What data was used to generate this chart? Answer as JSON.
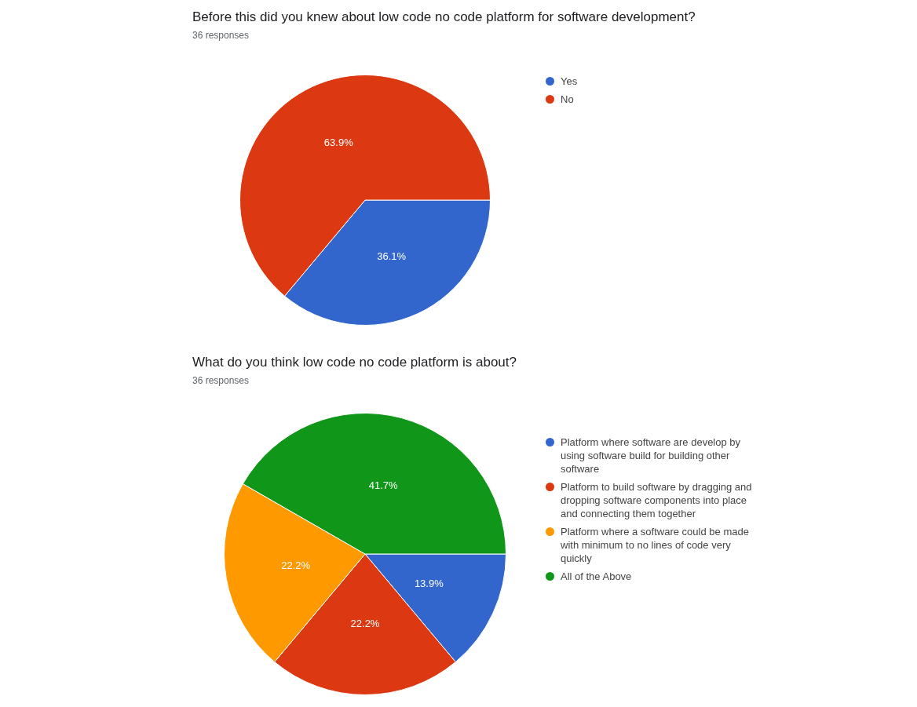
{
  "chart_data": [
    {
      "type": "pie",
      "title": "Before this did you knew about low code no code platform for software development?",
      "subtitle": "36 responses",
      "categories": [
        "Yes",
        "No"
      ],
      "values": [
        36.1,
        63.9
      ],
      "value_labels": [
        "36.1%",
        "63.9%"
      ],
      "colors": [
        "#3366cc",
        "#dc3912"
      ],
      "legend": "top right"
    },
    {
      "type": "pie",
      "title": "What do you think low code no code platform is about?",
      "subtitle": "36 responses",
      "categories": [
        "Platform where software are develop by using software build for building other software",
        "Platform to build software by dragging and dropping software components into place and connecting them together",
        "Platform where a software could be made with minimum to no lines of code very quickly",
        "All of the Above"
      ],
      "values": [
        13.9,
        22.2,
        22.2,
        41.7
      ],
      "value_labels": [
        "13.9%",
        "22.2%",
        "22.2%",
        "41.7%"
      ],
      "colors": [
        "#3366cc",
        "#dc3912",
        "#ff9900",
        "#109618"
      ],
      "legend": "top right"
    }
  ]
}
